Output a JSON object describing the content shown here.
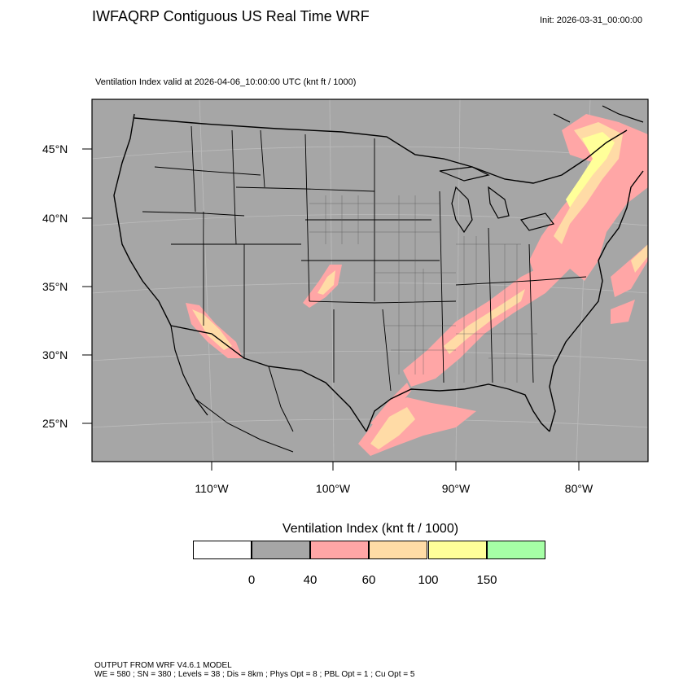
{
  "title": "IWFAQRP Contiguous US Real Time WRF",
  "init_label": "Init: 2026-03-31_00:00:00",
  "subtitle": "Ventilation Index valid at 2026-04-06_10:00:00 UTC   (knt ft / 1000)",
  "map": {
    "lat_labels": [
      "45°N",
      "40°N",
      "35°N",
      "30°N",
      "25°N"
    ],
    "lon_labels": [
      "110°W",
      "100°W",
      "90°W",
      "80°W"
    ],
    "colors": {
      "background": "#a6a6a6",
      "band_40_60": "#ffa6a6",
      "band_60_100": "#ffdba6",
      "band_100_150": "#ffff99",
      "border": "#000000"
    }
  },
  "colorbar": {
    "title": "Ventilation Index  (knt ft / 1000)",
    "colors": [
      "#ffffff",
      "#a6a6a6",
      "#ffa6a6",
      "#ffdca6",
      "#ffff99",
      "#a6ffa6"
    ],
    "tick_labels": [
      "0",
      "40",
      "60",
      "100",
      "150"
    ]
  },
  "footer": {
    "line1": "OUTPUT FROM WRF V4.6.1 MODEL",
    "line2": "WE = 580 ; SN = 380 ; Levels = 38 ; Dis = 8km ; Phys Opt = 8 ; PBL Opt = 1 ; Cu Opt = 5"
  }
}
